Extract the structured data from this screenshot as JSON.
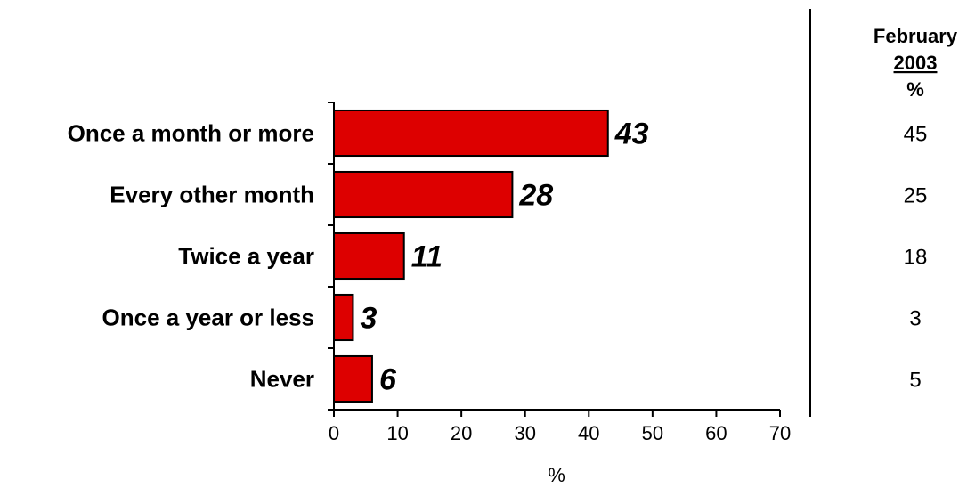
{
  "chart_data": {
    "type": "bar",
    "orientation": "horizontal",
    "categories": [
      "Once a month or more",
      "Every other month",
      "Twice a year",
      "Once a year or less",
      "Never"
    ],
    "values": [
      43,
      28,
      11,
      3,
      6
    ],
    "xlabel": "%",
    "xlim": [
      0,
      70
    ],
    "xticks": [
      0,
      10,
      20,
      30,
      40,
      50,
      60,
      70
    ],
    "bar_color": "#dd0000",
    "grid": false,
    "comparison": {
      "header_line1": "February",
      "header_line2": "2003",
      "header_line3": "%",
      "values": [
        45,
        25,
        18,
        3,
        5
      ]
    }
  }
}
